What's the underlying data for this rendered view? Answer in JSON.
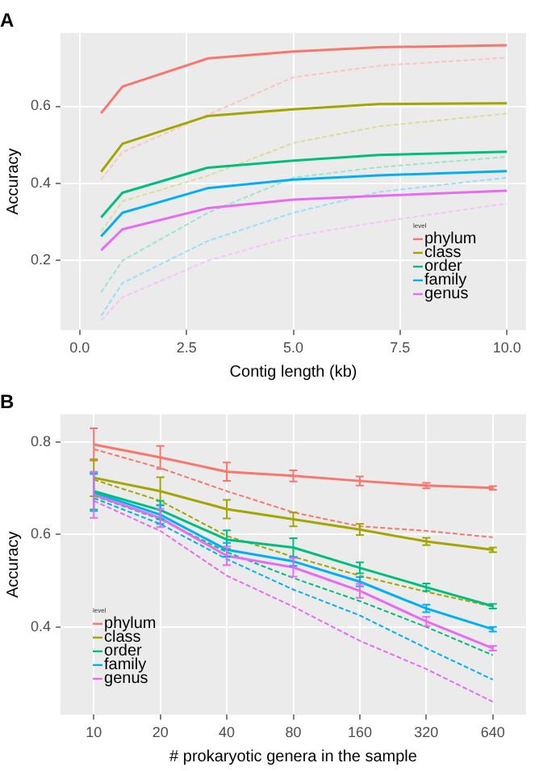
{
  "chart_data": [
    {
      "type": "line",
      "title": "A",
      "xlabel": "Contig length (kb)",
      "ylabel": "Accuracy",
      "legend_title": "level",
      "x": [
        0.5,
        1,
        3,
        5,
        7,
        10
      ],
      "xlim": [
        -0.45,
        10.45
      ],
      "xticks": [
        {
          "value": 0,
          "label": "0.0"
        },
        2.5,
        {
          "value": 5,
          "label": "5.0"
        },
        7.5,
        {
          "value": 10,
          "label": "10.0"
        }
      ],
      "ylim": [
        0.02,
        0.79
      ],
      "yticks": [
        0.2,
        0.4,
        0.6
      ],
      "grid": true,
      "legend": "bottom right",
      "marker": "none",
      "series": [
        {
          "name": "phylum",
          "color": "#f8766d",
          "values": [
            0.582,
            0.651,
            0.724,
            0.742,
            0.753,
            0.758
          ]
        },
        {
          "name": "class",
          "color": "#a3a500",
          "values": [
            0.43,
            0.503,
            0.575,
            0.592,
            0.606,
            0.608
          ]
        },
        {
          "name": "order",
          "color": "#00bf7d",
          "values": [
            0.312,
            0.376,
            0.441,
            0.459,
            0.474,
            0.482
          ]
        },
        {
          "name": "family",
          "color": "#00b0f6",
          "values": [
            0.263,
            0.324,
            0.388,
            0.41,
            0.421,
            0.432
          ]
        },
        {
          "name": "genus",
          "color": "#e76bf3",
          "values": [
            0.227,
            0.281,
            0.336,
            0.358,
            0.368,
            0.381
          ]
        },
        {
          "color": "#fbc4bf",
          "line_style": "dashed",
          "values": [
            0.41,
            0.481,
            0.578,
            0.675,
            0.705,
            0.726
          ]
        },
        {
          "color": "#dcdc99",
          "line_style": "dashed",
          "values": [
            0.275,
            0.354,
            0.42,
            0.505,
            0.548,
            0.581
          ]
        },
        {
          "color": "#99e6cb",
          "line_style": "dashed",
          "values": [
            0.118,
            0.2,
            0.324,
            0.415,
            0.442,
            0.469
          ]
        },
        {
          "color": "#99dffb",
          "line_style": "dashed",
          "values": [
            0.057,
            0.142,
            0.251,
            0.324,
            0.378,
            0.415
          ]
        },
        {
          "color": "#f5c4fa",
          "line_style": "dashed",
          "values": [
            0.045,
            0.105,
            0.2,
            0.263,
            0.3,
            0.348
          ]
        }
      ]
    },
    {
      "type": "line",
      "title": "B",
      "xlabel": "# prokaryotic genera in the sample",
      "ylabel": "Accuracy",
      "legend_title": "level",
      "categories": [
        "10",
        "20",
        "40",
        "80",
        "160",
        "320",
        "640"
      ],
      "ylim": [
        0.21,
        0.86
      ],
      "yticks": [
        0.4,
        0.6,
        0.8
      ],
      "grid": true,
      "legend": "bottom left",
      "marker": "none",
      "series": [
        {
          "name": "phylum",
          "color": "#f8766d",
          "values": [
            0.795,
            0.767,
            0.736,
            0.727,
            0.716,
            0.706,
            0.701
          ],
          "errors": [
            0.035,
            0.025,
            0.02,
            0.012,
            0.01,
            0.006,
            0.004
          ]
        },
        {
          "name": "class",
          "color": "#a3a500",
          "values": [
            0.723,
            0.694,
            0.655,
            0.633,
            0.611,
            0.585,
            0.567
          ],
          "errors": [
            0.04,
            0.03,
            0.02,
            0.015,
            0.012,
            0.008,
            0.005
          ]
        },
        {
          "name": "order",
          "color": "#00bf7d",
          "values": [
            0.694,
            0.653,
            0.589,
            0.572,
            0.528,
            0.486,
            0.445
          ],
          "errors": [
            0.04,
            0.02,
            0.02,
            0.02,
            0.012,
            0.008,
            0.005
          ]
        },
        {
          "name": "family",
          "color": "#00b0f6",
          "values": [
            0.691,
            0.643,
            0.567,
            0.542,
            0.498,
            0.44,
            0.395
          ],
          "errors": [
            0.04,
            0.02,
            0.015,
            0.01,
            0.01,
            0.008,
            0.005
          ]
        },
        {
          "name": "genus",
          "color": "#e76bf3",
          "values": [
            0.686,
            0.636,
            0.554,
            0.529,
            0.478,
            0.412,
            0.354
          ],
          "errors": [
            0.05,
            0.02,
            0.02,
            0.02,
            0.015,
            0.01,
            0.005
          ]
        },
        {
          "color": "#f8766d",
          "line_style": "dashed",
          "values": [
            0.785,
            0.744,
            0.694,
            0.648,
            0.618,
            0.608,
            0.594
          ]
        },
        {
          "color": "#a3a500",
          "line_style": "dashed",
          "values": [
            0.719,
            0.673,
            0.597,
            0.552,
            0.511,
            0.476,
            0.444
          ]
        },
        {
          "color": "#00bf7d",
          "line_style": "dashed",
          "values": [
            0.684,
            0.633,
            0.562,
            0.506,
            0.456,
            0.4,
            0.339
          ]
        },
        {
          "color": "#00b0f6",
          "line_style": "dashed",
          "values": [
            0.679,
            0.623,
            0.547,
            0.481,
            0.425,
            0.354,
            0.286
          ]
        },
        {
          "color": "#e76bf3",
          "line_style": "dashed",
          "values": [
            0.673,
            0.608,
            0.511,
            0.444,
            0.37,
            0.309,
            0.238
          ]
        }
      ]
    }
  ]
}
